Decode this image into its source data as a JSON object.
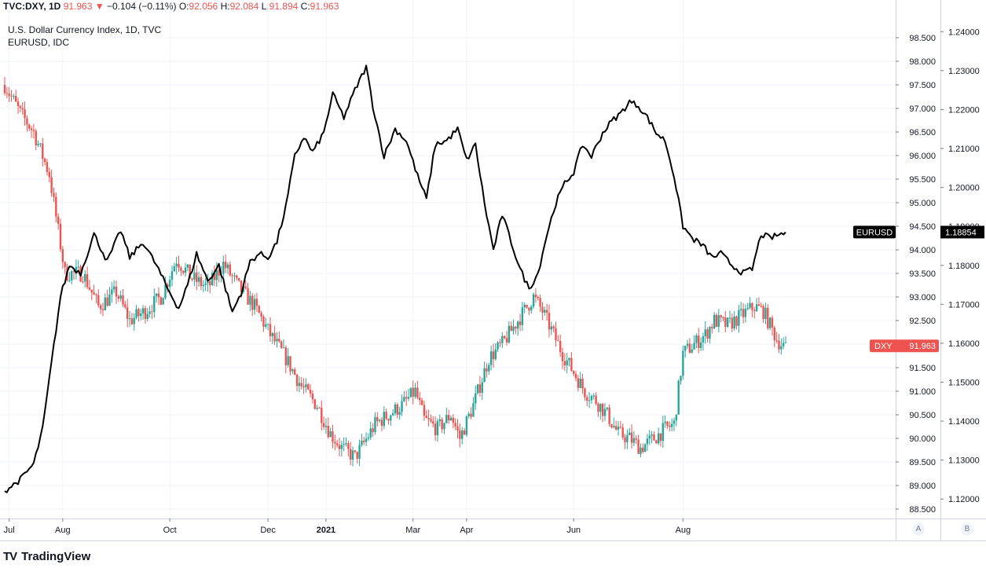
{
  "header": {
    "symbol": "TVC:DXY, 1D",
    "last": "91.963",
    "change": "−0.104 (−0.11%)",
    "open_label": "O:",
    "open": "92.056",
    "high_label": "H:",
    "high": "92.084",
    "low_label": "L:",
    "low": "91.894",
    "close_label": "C:",
    "close": "91.963"
  },
  "legend": {
    "line1": "U.S. Dollar Currency Index, 1D, TVC",
    "line2": "EURUSD, IDC"
  },
  "brand": {
    "name": "TradingView",
    "logo": "TV"
  },
  "axis_buttons": {
    "a": "A",
    "b": "B"
  },
  "colors": {
    "up": "#26a69a",
    "down": "#ef5350",
    "line": "#000000",
    "grid": "#f0f3fa"
  },
  "chart_data": {
    "type": "candlestick+line",
    "x_ticks": [
      "Jul",
      "Aug",
      "Oct",
      "Dec",
      "2021",
      "Mar",
      "Apr",
      "Jun",
      "Aug"
    ],
    "left_axis": {
      "label": "DXY",
      "range": [
        88.3,
        99.0
      ],
      "ticks": [
        "88.500",
        "89.000",
        "89.500",
        "90.000",
        "90.500",
        "91.000",
        "91.500",
        "92.000",
        "92.500",
        "93.000",
        "93.500",
        "94.000",
        "94.500",
        "95.000",
        "95.500",
        "96.000",
        "96.500",
        "97.000",
        "97.500",
        "98.000",
        "98.500"
      ]
    },
    "right_axis": {
      "label": "EURUSD",
      "range": [
        1.115,
        1.2445
      ],
      "ticks": [
        "1.12000",
        "1.13000",
        "1.14000",
        "1.15000",
        "1.16000",
        "1.17000",
        "1.18000",
        "1.19000",
        "1.20000",
        "1.21000",
        "1.22000",
        "1.23000",
        "1.24000"
      ]
    },
    "badges": [
      {
        "name": "EURUSD",
        "value": "1.18854"
      },
      {
        "name": "DXY",
        "value": "91.963"
      }
    ],
    "dxy_anchors": [
      [
        0,
        97.5
      ],
      [
        7,
        96.9
      ],
      [
        13,
        96.5
      ],
      [
        20,
        95.6
      ],
      [
        27,
        93.5
      ],
      [
        35,
        93.5
      ],
      [
        42,
        92.8
      ],
      [
        50,
        93.1
      ],
      [
        56,
        92.5
      ],
      [
        63,
        92.7
      ],
      [
        70,
        93.0
      ],
      [
        77,
        93.8
      ],
      [
        84,
        93.4
      ],
      [
        91,
        93.2
      ],
      [
        98,
        93.7
      ],
      [
        105,
        93.2
      ],
      [
        112,
        92.8
      ],
      [
        119,
        92.2
      ],
      [
        126,
        91.7
      ],
      [
        133,
        91.1
      ],
      [
        140,
        90.7
      ],
      [
        146,
        90.1
      ],
      [
        151,
        89.8
      ],
      [
        157,
        89.6
      ],
      [
        161,
        89.9
      ],
      [
        166,
        90.3
      ],
      [
        172,
        90.5
      ],
      [
        178,
        90.7
      ],
      [
        184,
        91.0
      ],
      [
        188,
        90.4
      ],
      [
        194,
        90.2
      ],
      [
        200,
        90.5
      ],
      [
        204,
        90.0
      ],
      [
        210,
        90.7
      ],
      [
        217,
        91.7
      ],
      [
        223,
        92.0
      ],
      [
        230,
        92.5
      ],
      [
        237,
        93.0
      ],
      [
        241,
        92.7
      ],
      [
        245,
        92.3
      ],
      [
        250,
        91.8
      ],
      [
        255,
        91.4
      ],
      [
        260,
        91.0
      ],
      [
        265,
        90.8
      ],
      [
        270,
        90.5
      ],
      [
        275,
        90.1
      ],
      [
        280,
        90.0
      ],
      [
        285,
        89.8
      ],
      [
        291,
        90.0
      ],
      [
        296,
        90.2
      ],
      [
        300,
        90.3
      ],
      [
        304,
        91.8
      ],
      [
        309,
        92.0
      ],
      [
        314,
        92.2
      ],
      [
        318,
        92.5
      ],
      [
        324,
        92.4
      ],
      [
        330,
        92.6
      ],
      [
        336,
        92.8
      ],
      [
        340,
        92.7
      ],
      [
        346,
        92.1
      ],
      [
        350,
        91.9
      ]
    ],
    "eurusd_anchors": [
      [
        0,
        1.122
      ],
      [
        7,
        1.125
      ],
      [
        13,
        1.129
      ],
      [
        17,
        1.138
      ],
      [
        21,
        1.155
      ],
      [
        25,
        1.172
      ],
      [
        29,
        1.18
      ],
      [
        34,
        1.178
      ],
      [
        40,
        1.188
      ],
      [
        46,
        1.181
      ],
      [
        52,
        1.189
      ],
      [
        56,
        1.182
      ],
      [
        62,
        1.186
      ],
      [
        68,
        1.18
      ],
      [
        73,
        1.174
      ],
      [
        78,
        1.169
      ],
      [
        82,
        1.175
      ],
      [
        86,
        1.183
      ],
      [
        91,
        1.176
      ],
      [
        96,
        1.18
      ],
      [
        102,
        1.168
      ],
      [
        106,
        1.173
      ],
      [
        110,
        1.181
      ],
      [
        114,
        1.183
      ],
      [
        118,
        1.182
      ],
      [
        122,
        1.186
      ],
      [
        126,
        1.195
      ],
      [
        130,
        1.208
      ],
      [
        134,
        1.213
      ],
      [
        138,
        1.209
      ],
      [
        143,
        1.214
      ],
      [
        147,
        1.224
      ],
      [
        152,
        1.218
      ],
      [
        157,
        1.225
      ],
      [
        162,
        1.231
      ],
      [
        165,
        1.221
      ],
      [
        170,
        1.208
      ],
      [
        175,
        1.215
      ],
      [
        180,
        1.212
      ],
      [
        185,
        1.203
      ],
      [
        189,
        1.197
      ],
      [
        193,
        1.211
      ],
      [
        198,
        1.212
      ],
      [
        203,
        1.215
      ],
      [
        207,
        1.207
      ],
      [
        211,
        1.211
      ],
      [
        215,
        1.196
      ],
      [
        219,
        1.184
      ],
      [
        223,
        1.193
      ],
      [
        227,
        1.186
      ],
      [
        231,
        1.179
      ],
      [
        235,
        1.174
      ],
      [
        239,
        1.178
      ],
      [
        243,
        1.188
      ],
      [
        247,
        1.196
      ],
      [
        251,
        1.201
      ],
      [
        255,
        1.204
      ],
      [
        259,
        1.211
      ],
      [
        263,
        1.208
      ],
      [
        268,
        1.214
      ],
      [
        272,
        1.217
      ],
      [
        276,
        1.219
      ],
      [
        280,
        1.222
      ],
      [
        284,
        1.221
      ],
      [
        288,
        1.218
      ],
      [
        292,
        1.214
      ],
      [
        296,
        1.212
      ],
      [
        300,
        1.203
      ],
      [
        304,
        1.19
      ],
      [
        308,
        1.187
      ],
      [
        313,
        1.185
      ],
      [
        317,
        1.182
      ],
      [
        321,
        1.183
      ],
      [
        326,
        1.18
      ],
      [
        331,
        1.178
      ],
      [
        335,
        1.179
      ],
      [
        339,
        1.188
      ],
      [
        343,
        1.187
      ],
      [
        350,
        1.1885
      ]
    ]
  }
}
